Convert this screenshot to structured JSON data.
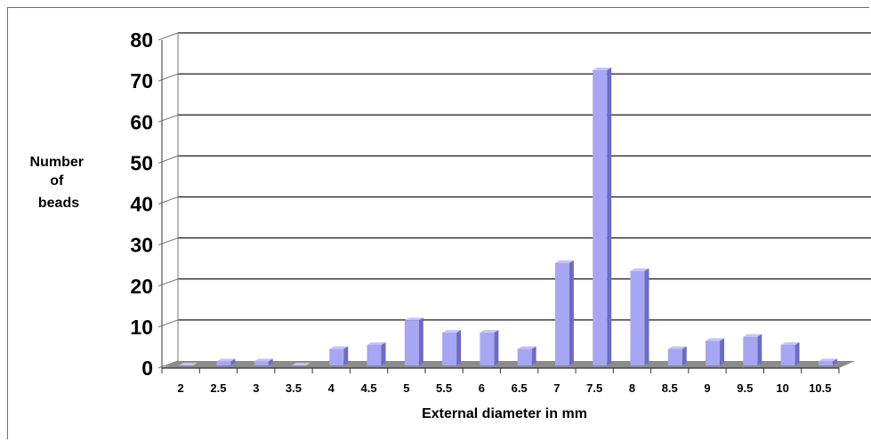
{
  "chart_data": {
    "type": "bar",
    "title": "",
    "xlabel": "External diameter in mm",
    "ylabel": [
      "Number",
      "of",
      "beads"
    ],
    "categories": [
      "2",
      "2.5",
      "3",
      "3.5",
      "4",
      "4.5",
      "5",
      "5.5",
      "6",
      "6.5",
      "7",
      "7.5",
      "8",
      "8.5",
      "9",
      "9.5",
      "10",
      "10.5"
    ],
    "values": [
      0,
      1,
      1,
      0,
      4,
      5,
      11,
      8,
      8,
      4,
      25,
      72,
      23,
      4,
      6,
      7,
      5,
      1
    ],
    "ylim": [
      0,
      80
    ],
    "yticks": [
      0,
      10,
      20,
      30,
      40,
      50,
      60,
      70,
      80
    ],
    "grid": true,
    "legend": "none",
    "colors": {
      "bar_front": "#a6a6f5",
      "bar_side": "#6c6cc2",
      "bar_top": "#c4c4fa",
      "floor": "#8c8c8c",
      "wall": "#ffffff",
      "grid": "#1a1a1a"
    }
  }
}
